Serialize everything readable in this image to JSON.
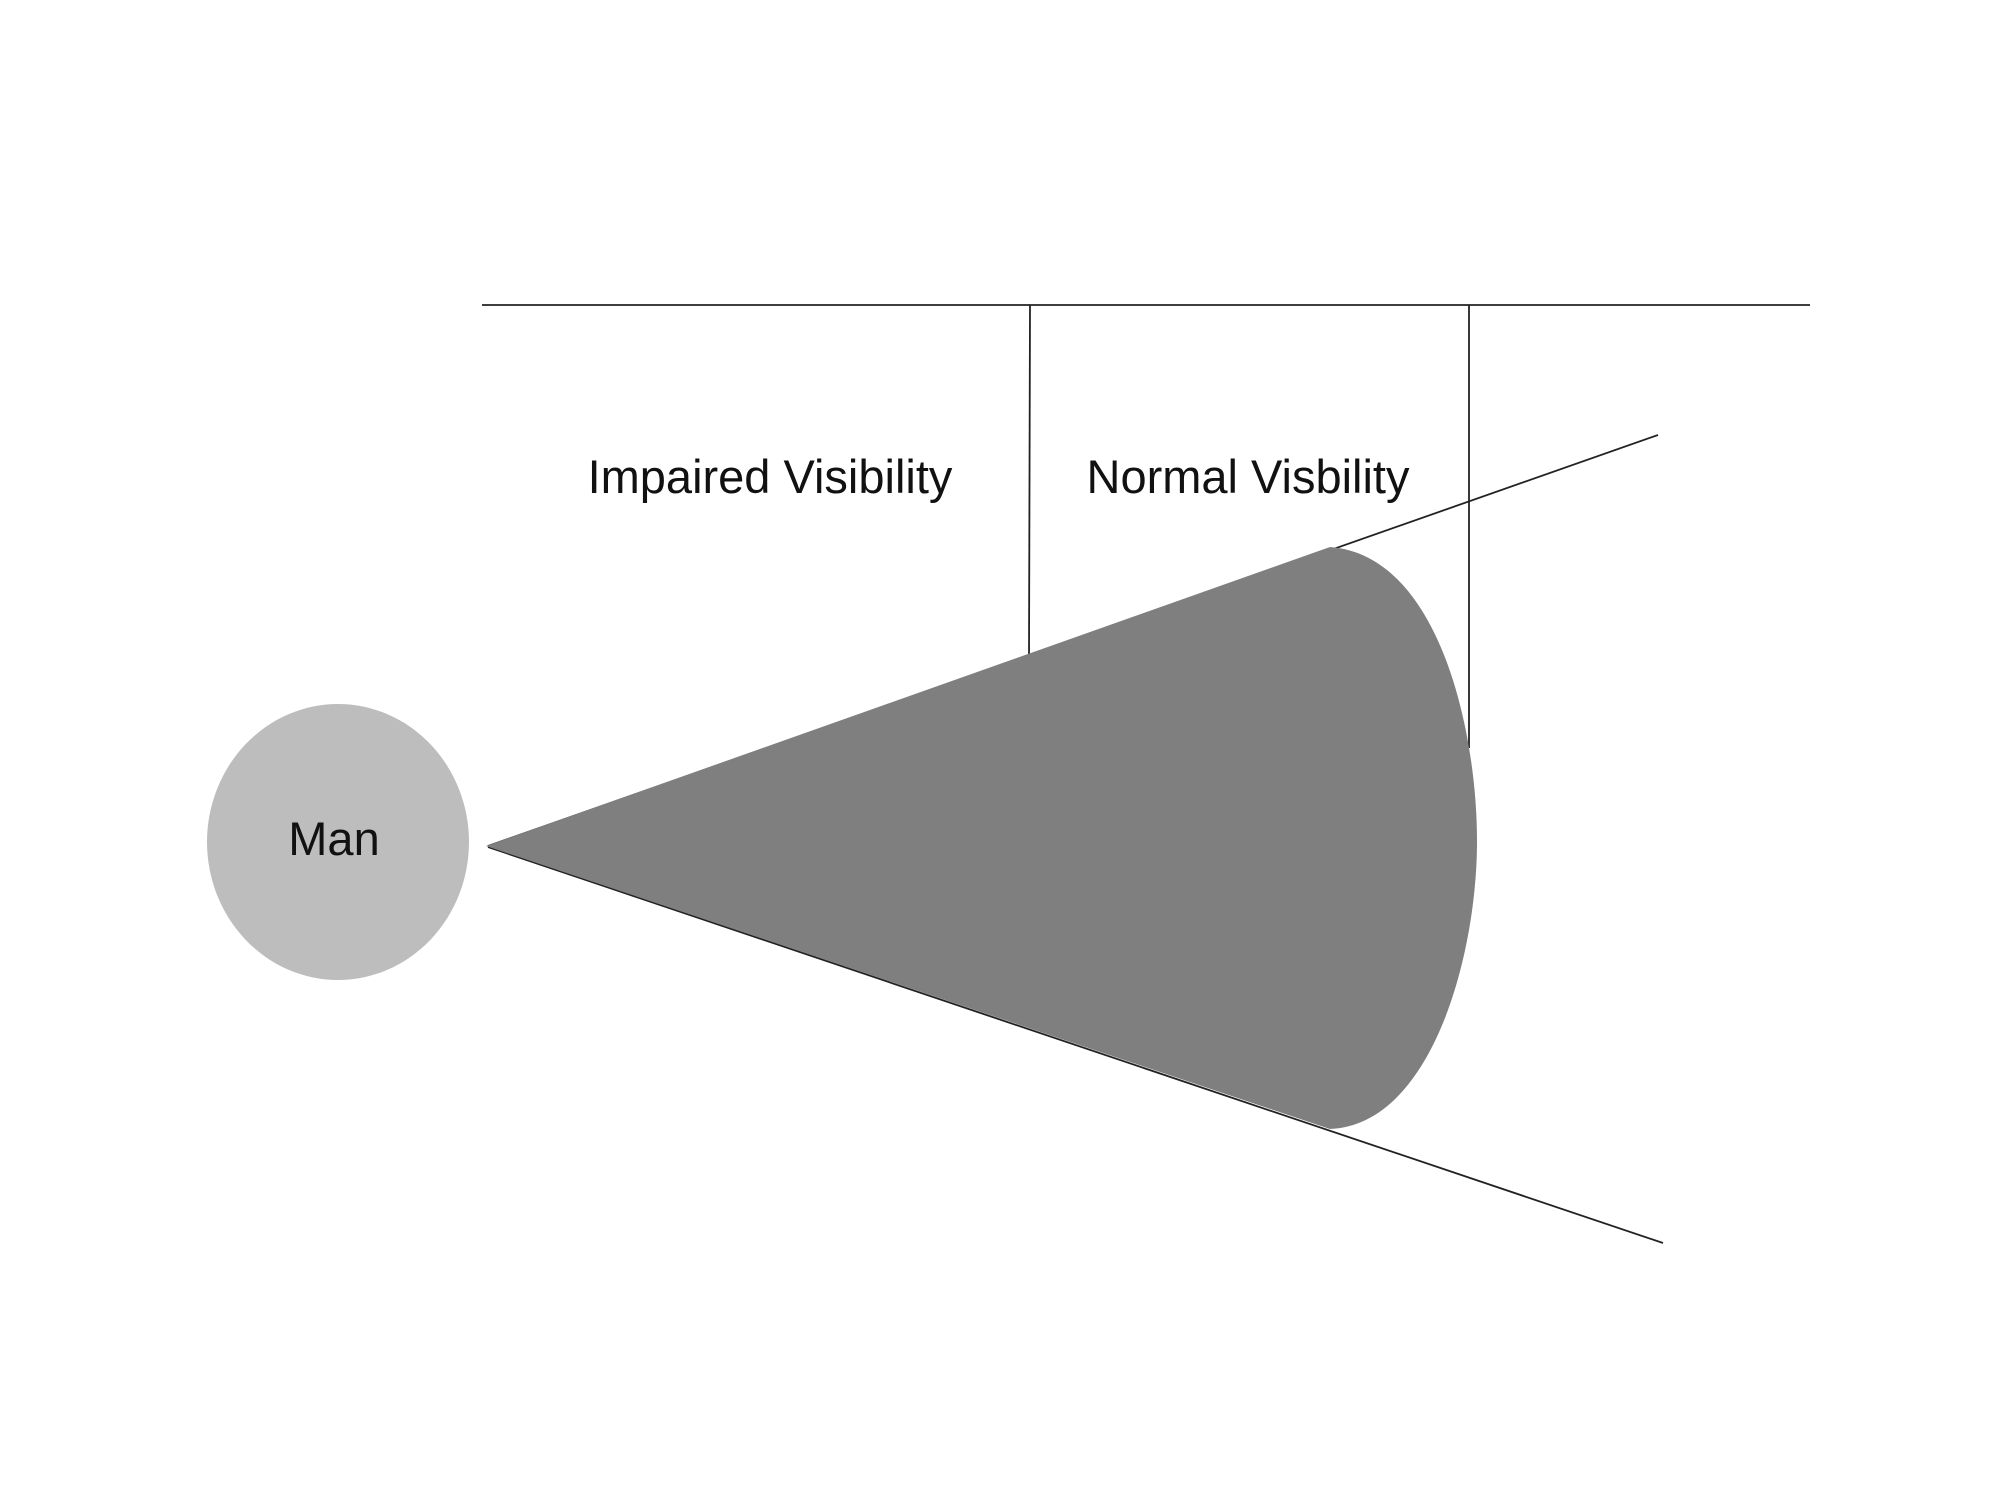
{
  "diagram": {
    "man_label": "Man",
    "zones": {
      "impaired_label": "Impaired Visibility",
      "normal_label": "Normal Visbility"
    },
    "colors": {
      "background": "#ffffff",
      "man_fill": "#bdbdbd",
      "cone_fill": "#7f7f7f",
      "line": "#222222",
      "text": "#111111"
    }
  }
}
